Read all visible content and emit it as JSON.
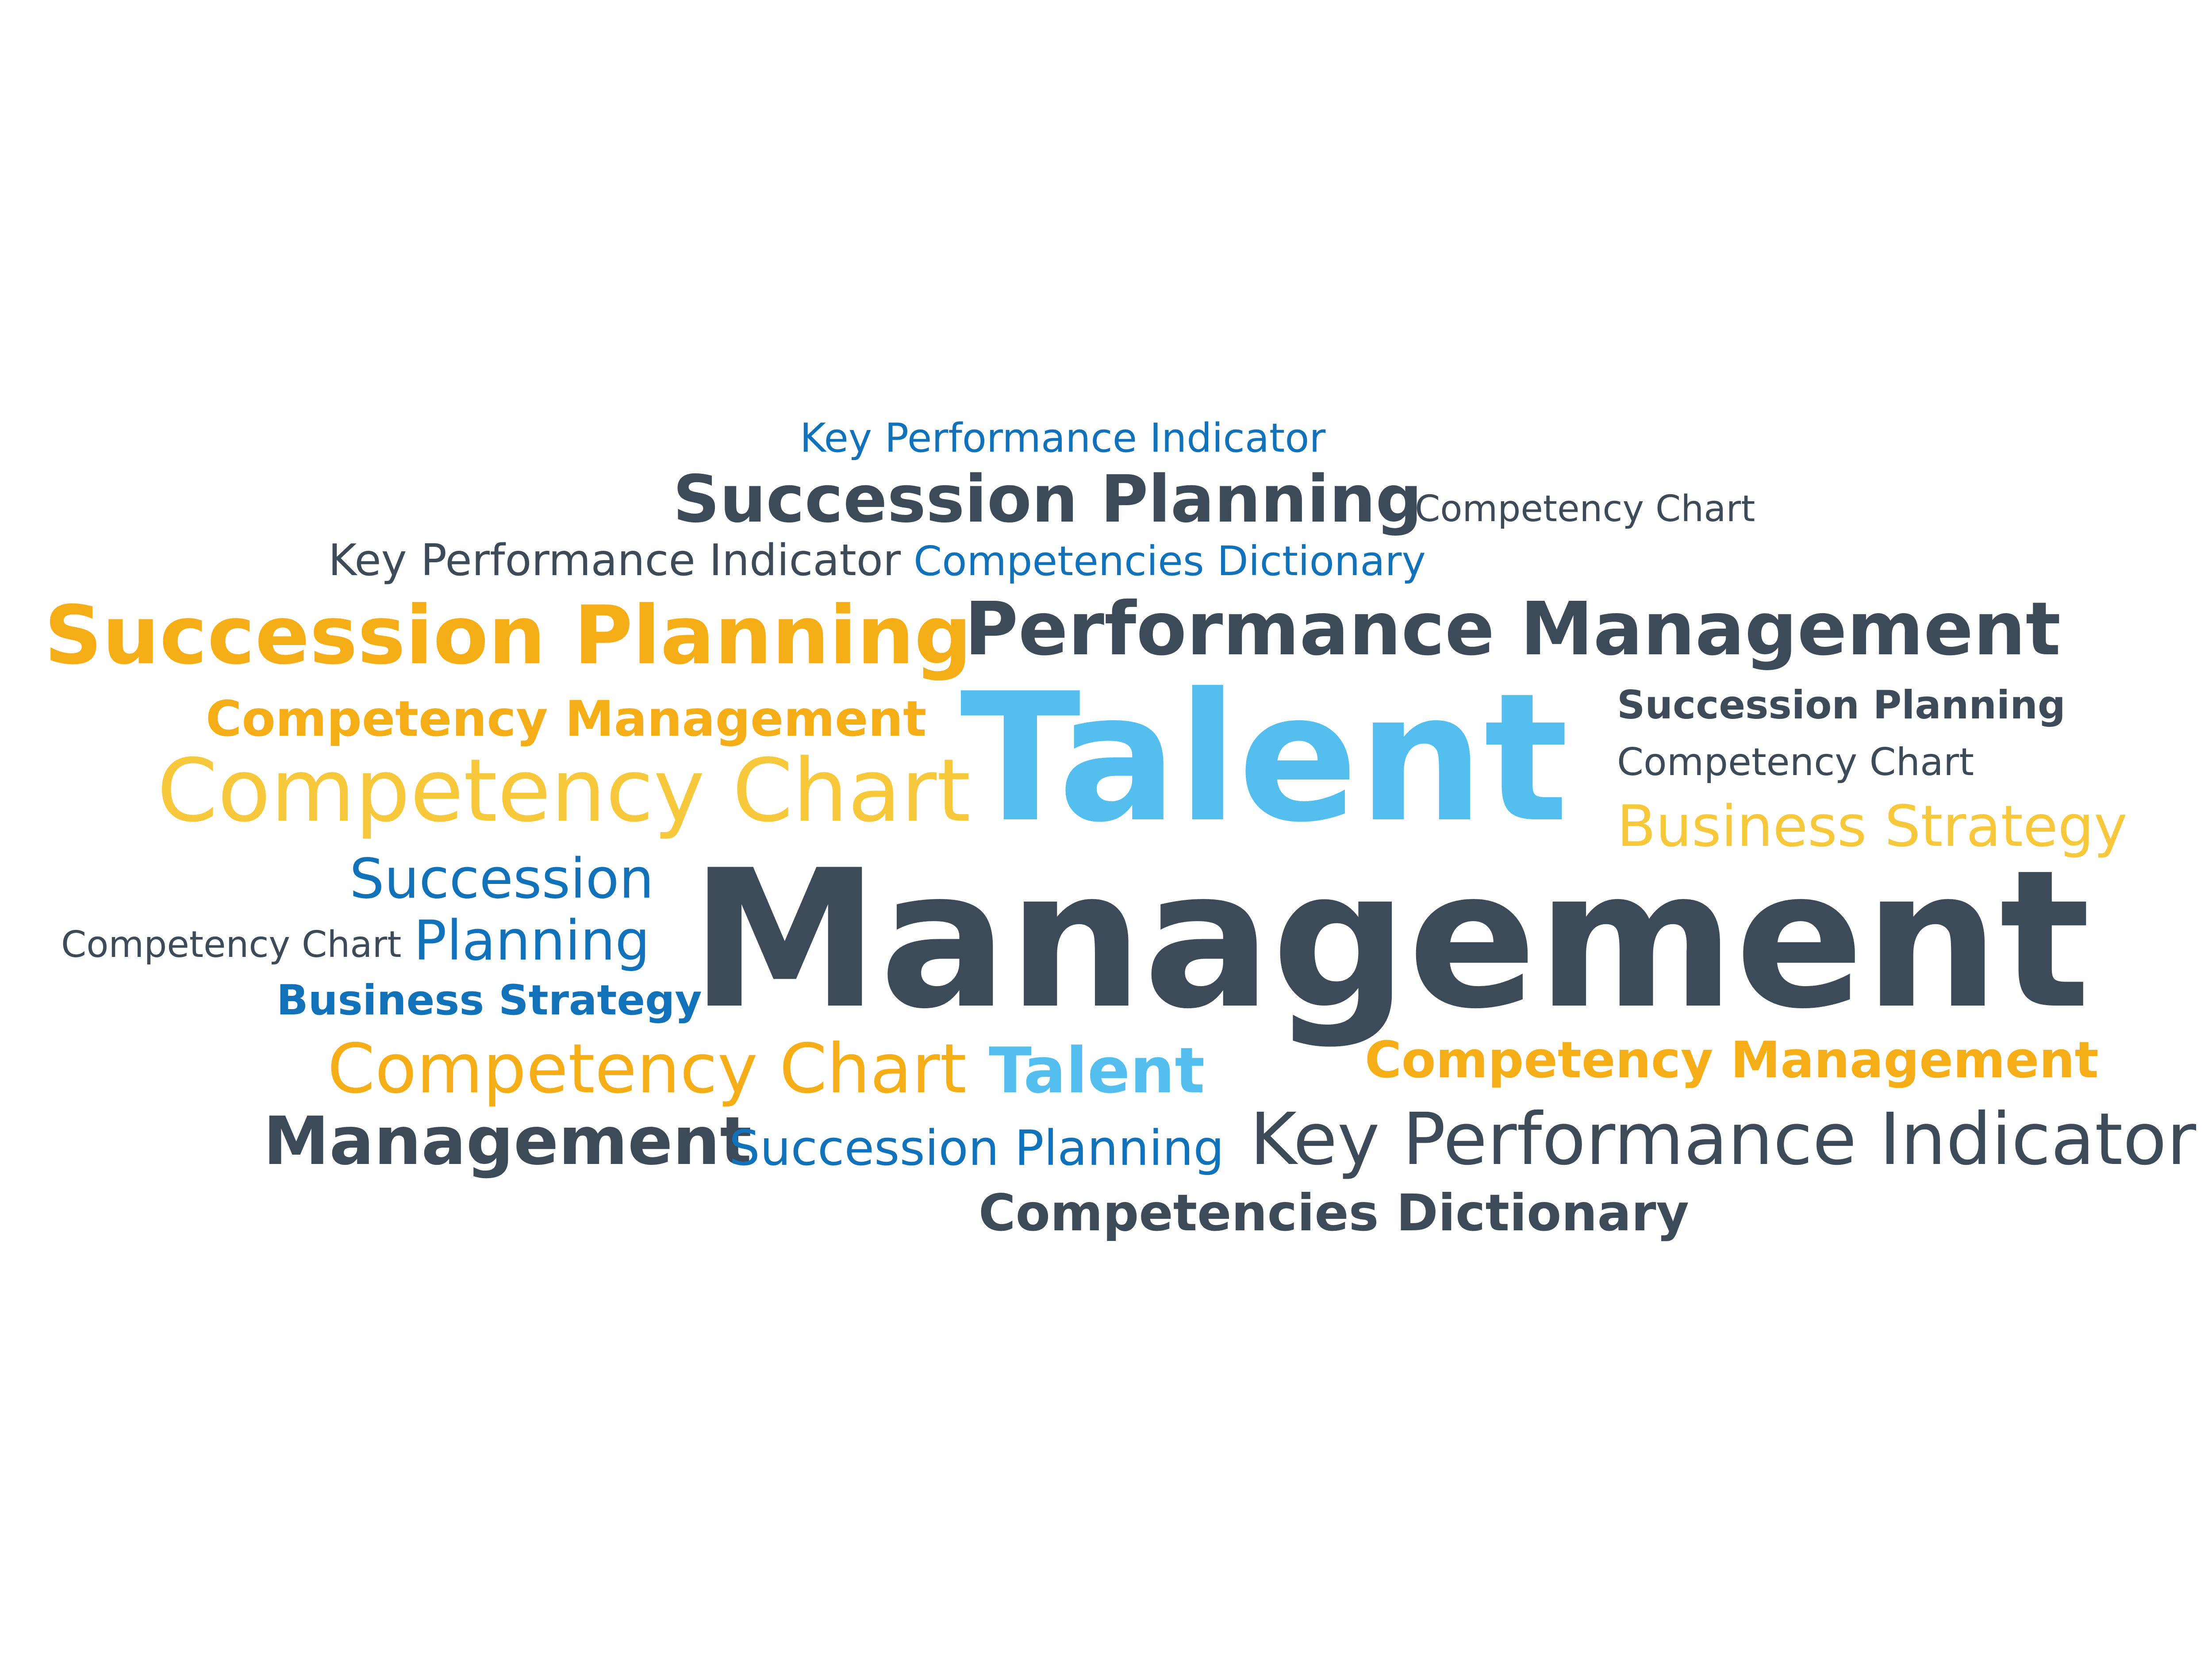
{
  "palette": {
    "dark_slate": "#3d4a57",
    "blue": "#1172b9",
    "sky_blue": "#54bfee",
    "orange": "#f5ae18",
    "yellow": "#f7c83b"
  },
  "words": [
    {
      "text": "Key Performance Indicator",
      "color": "#1172b9",
      "weight": "normal"
    },
    {
      "text": "Succession Planning",
      "color": "#3d4a57",
      "weight": "bold"
    },
    {
      "text": "Competency Chart",
      "color": "#3d4a57",
      "weight": "normal"
    },
    {
      "text": "Key Performance Indicator",
      "color": "#3d4a57",
      "weight": "normal"
    },
    {
      "text": "Competencies Dictionary",
      "color": "#1172b9",
      "weight": "normal"
    },
    {
      "text": "Succession Planning",
      "color": "#f5ae18",
      "weight": "bold"
    },
    {
      "text": "Performance Management",
      "color": "#3d4a57",
      "weight": "bold"
    },
    {
      "text": "Competency Management",
      "color": "#f5ae18",
      "weight": "bold"
    },
    {
      "text": "Succession Planning",
      "color": "#3d4a57",
      "weight": "bold"
    },
    {
      "text": "Talent",
      "color": "#54bfee",
      "weight": "bold"
    },
    {
      "text": "Competency Chart",
      "color": "#3d4a57",
      "weight": "normal"
    },
    {
      "text": "Competency Chart",
      "color": "#f7c83b",
      "weight": "normal"
    },
    {
      "text": "Business Strategy",
      "color": "#f7c83b",
      "weight": "normal"
    },
    {
      "text": "Succession",
      "color": "#1172b9",
      "weight": "normal"
    },
    {
      "text": "Management",
      "color": "#3d4a57",
      "weight": "bold"
    },
    {
      "text": "Competency Chart",
      "color": "#3d4a57",
      "weight": "normal"
    },
    {
      "text": "Planning",
      "color": "#1172b9",
      "weight": "normal"
    },
    {
      "text": "Business Strategy",
      "color": "#1172b9",
      "weight": "bold"
    },
    {
      "text": "Competency Management",
      "color": "#f5ae18",
      "weight": "bold"
    },
    {
      "text": "Competency Chart",
      "color": "#f5ae18",
      "weight": "normal"
    },
    {
      "text": "Talent",
      "color": "#54bfee",
      "weight": "bold"
    },
    {
      "text": "Management",
      "color": "#3d4a57",
      "weight": "bold"
    },
    {
      "text": "Succession Planning",
      "color": "#1172b9",
      "weight": "normal"
    },
    {
      "text": "Key Performance Indicator",
      "color": "#3d4a57",
      "weight": "normal"
    },
    {
      "text": "Competencies Dictionary",
      "color": "#3d4a57",
      "weight": "bold"
    }
  ]
}
